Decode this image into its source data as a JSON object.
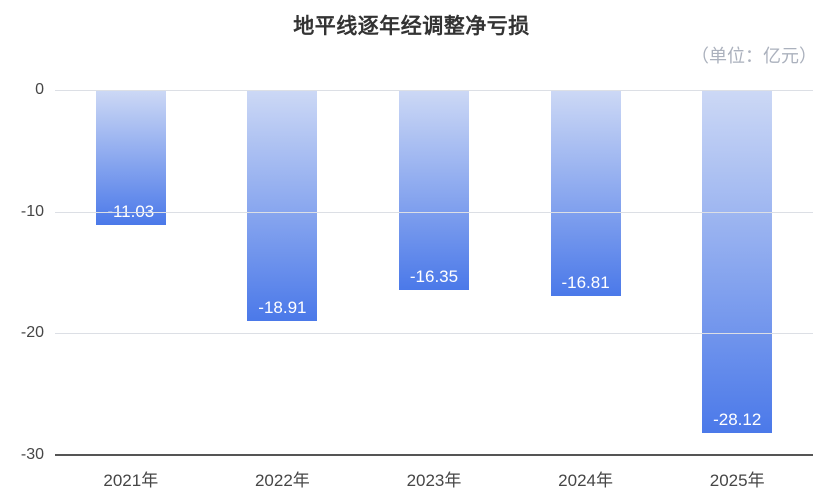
{
  "chart_data": {
    "type": "bar",
    "title": "地平线逐年经调整净亏损",
    "unit_label": "（单位：亿元）",
    "categories": [
      "2021年",
      "2022年",
      "2023年",
      "2024年",
      "2025年"
    ],
    "values": [
      -11.03,
      -18.91,
      -16.35,
      -16.81,
      -28.12
    ],
    "value_labels": [
      "-11.03",
      "-18.91",
      "-16.35",
      "-16.81",
      "-28.12"
    ],
    "yticks": [
      0,
      -10,
      -20,
      -30
    ],
    "ytick_labels": [
      "0",
      "-10",
      "-20",
      "-30"
    ],
    "ylim": [
      -30,
      0
    ],
    "xlabel": "",
    "ylabel": "",
    "grid": true,
    "legend_position": "none",
    "colors": {
      "background": "#ffffff",
      "title": "#333333",
      "unit": "#abb1bd",
      "bar_gradient_top": "#ccd8f5",
      "bar_gradient_bottom": "#4b79e9",
      "value_label": "#ffffff",
      "gridline": "#dcdfe5",
      "axis_line": "#555555",
      "tick_label": "#464646"
    }
  }
}
